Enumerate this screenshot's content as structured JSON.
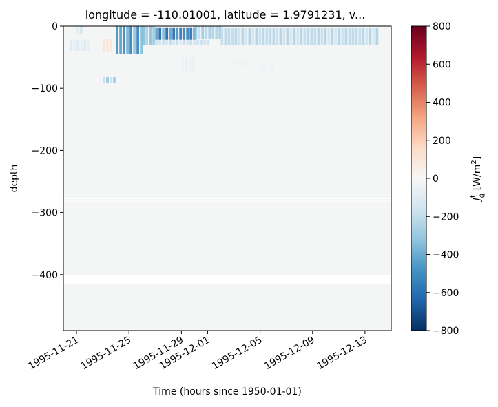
{
  "chart_data": {
    "type": "heatmap",
    "title": "longitude = -110.01001, latitude = 1.9791231, v...",
    "xlabel": "Time (hours since 1950-01-01)",
    "ylabel": "depth",
    "colorbar_label": "J_q^t [W/m^2]",
    "colormap": "RdBu_r",
    "colors": {
      "min": "#053061",
      "mid_low": "#4393c3",
      "zero": "#f7f7f7",
      "mid_high": "#f4a582",
      "max": "#67001f",
      "field_background": "#f4f6f6",
      "gap_bands": "#ffffff"
    },
    "x_range": [
      "1995-11-20",
      "1995-12-15"
    ],
    "x_ticks": [
      "1995-11-21",
      "1995-11-25",
      "1995-11-29",
      "1995-12-01",
      "1995-12-05",
      "1995-12-09",
      "1995-12-13"
    ],
    "y_range": [
      -490,
      0
    ],
    "y_ticks": [
      0,
      -100,
      -200,
      -300,
      -400
    ],
    "y_tick_labels": [
      "0",
      "−100",
      "−200",
      "−300",
      "−400"
    ],
    "clim": [
      -800,
      800
    ],
    "colorbar_ticks": [
      800,
      600,
      400,
      200,
      0,
      -200,
      -400,
      -600,
      -800
    ],
    "colorbar_tick_labels": [
      "800",
      "600",
      "400",
      "200",
      "0",
      "−200",
      "−400",
      "−600",
      "−800"
    ],
    "data_gaps_depth": [
      [
        -278,
        -277
      ],
      [
        -282,
        -281
      ],
      [
        -415,
        -401
      ]
    ],
    "events": [
      {
        "start": "1995-11-21",
        "end": "1995-11-21T12",
        "top": 0,
        "bottom": -12,
        "value": -150
      },
      {
        "start": "1995-11-20T12",
        "end": "1995-11-22",
        "top": -22,
        "bottom": -40,
        "value": -120
      },
      {
        "start": "1995-11-23",
        "end": "1995-11-23T18",
        "top": -20,
        "bottom": -42,
        "value": 120
      },
      {
        "start": "1995-11-23",
        "end": "1995-11-24",
        "top": -82,
        "bottom": -92,
        "value": -300
      },
      {
        "start": "1995-11-24",
        "end": "1995-11-26",
        "top": 0,
        "bottom": -45,
        "value": -550
      },
      {
        "start": "1995-11-26",
        "end": "1995-11-27",
        "top": 0,
        "bottom": -30,
        "value": -350
      },
      {
        "start": "1995-11-27",
        "end": "1995-11-30",
        "top": -2,
        "bottom": -22,
        "value": -650
      },
      {
        "start": "1995-11-27",
        "end": "1995-12-01",
        "top": -22,
        "bottom": -30,
        "value": -200
      },
      {
        "start": "1995-11-30",
        "end": "1995-12-02",
        "top": 0,
        "bottom": -20,
        "value": -300
      },
      {
        "start": "1995-11-29",
        "end": "1995-11-30",
        "top": -50,
        "bottom": -75,
        "value": -60
      },
      {
        "start": "1995-12-02",
        "end": "1995-12-14",
        "top": -3,
        "bottom": -30,
        "value": -250
      },
      {
        "start": "1995-12-03",
        "end": "1995-12-04",
        "top": -55,
        "bottom": -62,
        "value": -60
      },
      {
        "start": "1995-12-05",
        "end": "1995-12-06",
        "top": -60,
        "bottom": -75,
        "value": -40
      }
    ]
  }
}
